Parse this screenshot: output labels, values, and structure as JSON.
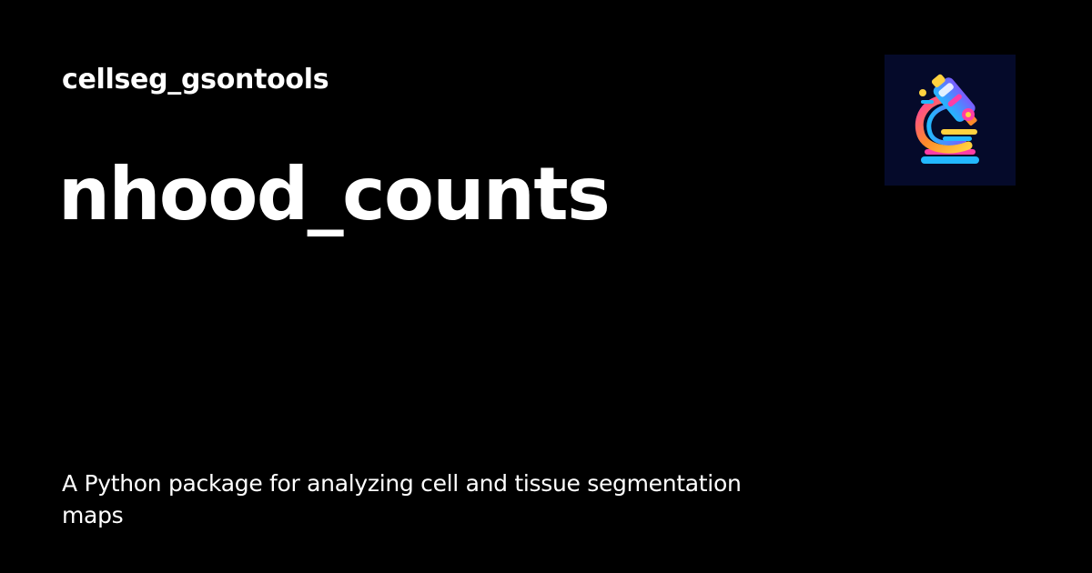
{
  "site": {
    "name": "cellseg_gsontools"
  },
  "page": {
    "title": "nhood_counts",
    "description": "A Python package for analyzing cell and tissue segmentation maps"
  },
  "logo": {
    "icon": "microscope-icon",
    "background_color": "#050a2a"
  },
  "colors": {
    "background": "#000000",
    "text": "#ffffff"
  }
}
